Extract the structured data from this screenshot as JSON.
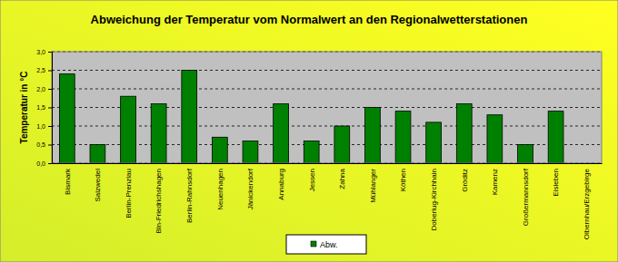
{
  "chart_data": {
    "type": "bar",
    "title": "Abweichung der Temperatur vom Normalwert an den Regionalwetterstationen",
    "y_label": "Temperatur in °C",
    "categories": [
      "Bismark",
      "Salzwedel",
      "Berlin-Prenzlau",
      "Bln-Friedrichshagen",
      "Berlin-Rahnsdorf",
      "Neuenhagen",
      "Jänickendorf",
      "Annaburg",
      "Jessen",
      "Zahna",
      "Mühlanger",
      "Köthen",
      "Doberlug-Kirchhain",
      "Gröditz",
      "Kamenz",
      "Großermannsdorf",
      "Eisleben",
      "Olbernhau/Erzgebirge"
    ],
    "series": [
      {
        "name": "Abw.",
        "color": "#008000",
        "values": [
          2.4,
          0.5,
          1.8,
          1.6,
          2.5,
          0.7,
          0.6,
          1.6,
          0.6,
          1.0,
          1.5,
          1.4,
          1.1,
          1.6,
          1.3,
          0.5,
          1.4,
          null
        ]
      }
    ],
    "ylim": [
      0,
      3
    ],
    "yticks": [
      {
        "value": 0,
        "label": "0,0"
      },
      {
        "value": 0.5,
        "label": "0,5"
      },
      {
        "value": 1,
        "label": "1,0"
      },
      {
        "value": 1.5,
        "label": "1,5"
      },
      {
        "value": 2,
        "label": "2,0"
      },
      {
        "value": 2.5,
        "label": "2,5"
      },
      {
        "value": 3,
        "label": "3,0"
      }
    ],
    "grid": true,
    "legend": "bottom"
  }
}
